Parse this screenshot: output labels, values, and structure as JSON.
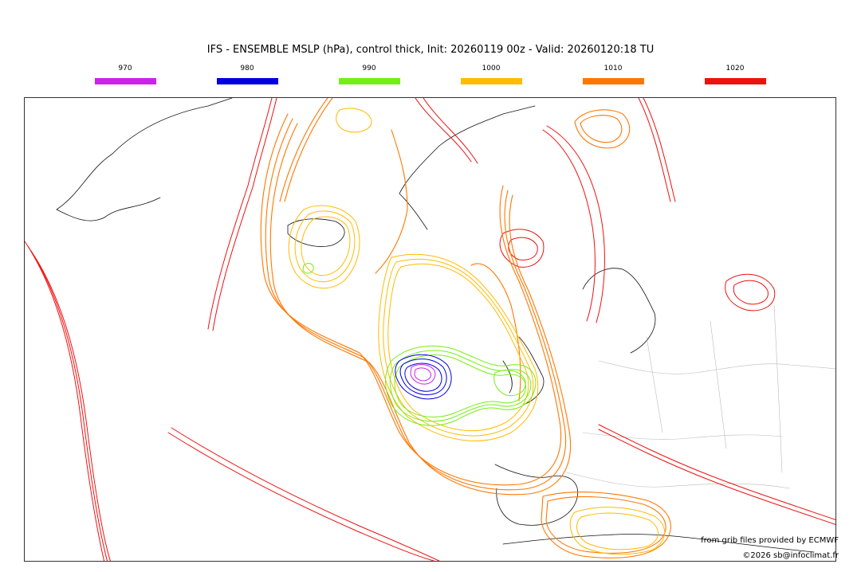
{
  "title": "IFS - ENSEMBLE MSLP (hPa), control thick, Init: 20260119 00z - Valid: 20260120:18 TU",
  "legend": [
    {
      "label": "970",
      "color": "#cc22ee"
    },
    {
      "label": "980",
      "color": "#0000dd"
    },
    {
      "label": "990",
      "color": "#77ee11"
    },
    {
      "label": "1000",
      "color": "#ffbb00"
    },
    {
      "label": "1010",
      "color": "#ff7700"
    },
    {
      "label": "1020",
      "color": "#ee1111"
    }
  ],
  "credits": {
    "source": "from grib files provided by ECMWF",
    "copyright": "©2026 sb@infoclimat.fr"
  }
}
